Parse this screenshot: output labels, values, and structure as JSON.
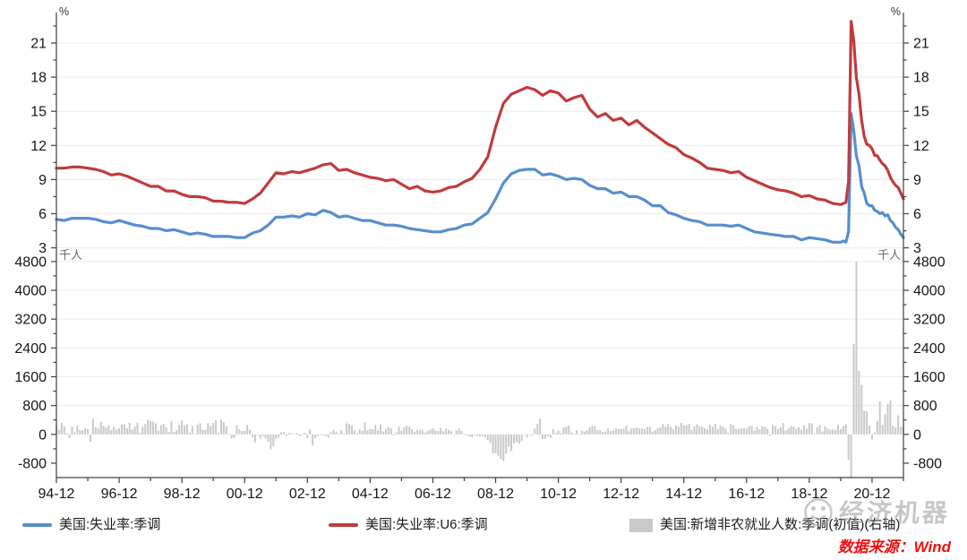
{
  "palette": {
    "axis": "#404040",
    "grid": "#ececec",
    "tick_label": "#161616",
    "unit_label_pct": "#333333",
    "unit_label_kp": "#6e6e6e",
    "watermark_gray": "#9b9b9b",
    "source_red": "#ee1111"
  },
  "chart_data": {
    "type": "mixed",
    "title": "",
    "x": {
      "start": "1994-12",
      "end": "2021-12",
      "months_total": 325,
      "major_tick_step_months": 24,
      "minor_tick_offset_months": 12,
      "major_tick_labels": [
        "94-12",
        "96-12",
        "98-12",
        "00-12",
        "02-12",
        "04-12",
        "06-12",
        "08-12",
        "10-12",
        "12-12",
        "14-12",
        "16-12",
        "18-12",
        "20-12"
      ]
    },
    "top_panel": {
      "unit": "%",
      "ticks": [
        3,
        6,
        9,
        12,
        15,
        18,
        21
      ],
      "minor_ticks": [
        4.5,
        7.5,
        10.5,
        13.5,
        16.5,
        19.5,
        22.5
      ],
      "grid_values": [
        3,
        6,
        9,
        12,
        15,
        18,
        21
      ],
      "range": [
        2.6,
        23.7
      ]
    },
    "bottom_panel": {
      "unit": "千人",
      "ticks": [
        -800,
        0,
        800,
        1600,
        2400,
        3200,
        4000,
        4800
      ],
      "minor_ticks": [
        -400,
        400,
        1200,
        2000,
        2800,
        3600,
        4400
      ],
      "grid_values": [
        800,
        1600,
        2400,
        3200,
        4000,
        4800
      ],
      "range": [
        -1200,
        4950
      ]
    },
    "series": [
      {
        "name": "美国:失业率:季调",
        "type": "line",
        "panel": "top",
        "color": "#568ECF",
        "quarterly_values": [
          5.5,
          5.4,
          5.6,
          5.6,
          5.6,
          5.5,
          5.3,
          5.2,
          5.4,
          5.2,
          5.0,
          4.9,
          4.7,
          4.7,
          4.5,
          4.6,
          4.4,
          4.2,
          4.3,
          4.2,
          4.0,
          4.0,
          4.0,
          3.9,
          3.9,
          4.3,
          4.5,
          5.0,
          5.7,
          5.7,
          5.8,
          5.7,
          6.0,
          5.9,
          6.3,
          6.1,
          5.7,
          5.8,
          5.6,
          5.4,
          5.4,
          5.2,
          5.0,
          5.0,
          4.9,
          4.7,
          4.6,
          4.5,
          4.4,
          4.4,
          4.6,
          4.7,
          5.0,
          5.1,
          5.6,
          6.1,
          7.3,
          8.7,
          9.5,
          9.8,
          9.9,
          9.9,
          9.4,
          9.5,
          9.3,
          9.0,
          9.1,
          9.0,
          8.5,
          8.2,
          8.2,
          7.8,
          7.9,
          7.5,
          7.5,
          7.2,
          6.7,
          6.7,
          6.1,
          5.9,
          5.6,
          5.4,
          5.3,
          5.0,
          5.0,
          5.0,
          4.9,
          5.0,
          4.7,
          4.4,
          4.3,
          4.2,
          4.1,
          4.0,
          4.0,
          3.7,
          3.9,
          3.8,
          3.7,
          3.5,
          3.5
        ],
        "monthly_tail_start_t": 301,
        "monthly_tail_values": [
          3.6,
          3.5,
          4.4,
          14.8,
          13.3,
          11.1,
          10.2,
          8.4,
          7.8,
          6.9,
          6.7,
          6.7,
          6.3,
          6.2,
          6.0,
          6.1,
          5.8,
          5.9,
          5.4,
          5.2,
          4.8,
          4.6,
          4.2,
          3.9
        ]
      },
      {
        "name": "美国:失业率:U6:季调",
        "type": "line",
        "panel": "top",
        "color": "#C13B3C",
        "quarterly_values": [
          10.0,
          10.0,
          10.1,
          10.1,
          10.0,
          9.9,
          9.7,
          9.4,
          9.5,
          9.3,
          9.0,
          8.7,
          8.4,
          8.4,
          8.0,
          8.0,
          7.7,
          7.5,
          7.5,
          7.4,
          7.1,
          7.1,
          7.0,
          7.0,
          6.9,
          7.3,
          7.8,
          8.7,
          9.6,
          9.5,
          9.7,
          9.6,
          9.8,
          10.0,
          10.3,
          10.4,
          9.8,
          9.9,
          9.6,
          9.4,
          9.2,
          9.1,
          8.9,
          9.0,
          8.6,
          8.2,
          8.4,
          8.0,
          7.9,
          8.0,
          8.3,
          8.4,
          8.8,
          9.1,
          9.9,
          11.0,
          13.6,
          15.7,
          16.5,
          16.8,
          17.1,
          16.9,
          16.4,
          16.8,
          16.6,
          15.9,
          16.2,
          16.4,
          15.2,
          14.5,
          14.8,
          14.2,
          14.4,
          13.8,
          14.2,
          13.6,
          13.1,
          12.6,
          12.1,
          11.8,
          11.2,
          10.9,
          10.5,
          10.0,
          9.9,
          9.8,
          9.6,
          9.7,
          9.2,
          8.9,
          8.6,
          8.3,
          8.1,
          8.0,
          7.8,
          7.5,
          7.6,
          7.3,
          7.2,
          6.9,
          6.8
        ],
        "monthly_tail_start_t": 301,
        "monthly_tail_values": [
          6.9,
          7.0,
          8.8,
          22.9,
          21.2,
          18.0,
          16.5,
          14.2,
          12.8,
          12.1,
          12.0,
          11.7,
          11.1,
          11.1,
          10.7,
          10.4,
          10.2,
          9.8,
          9.2,
          8.8,
          8.5,
          8.3,
          7.8,
          7.3
        ]
      },
      {
        "name": "美国:新增非农就业人数:季调(初值)(右轴)",
        "type": "bar",
        "panel": "bottom",
        "color": "#C9C9C9",
        "start": "1994-12",
        "monthly_values": [
          256,
          134,
          318,
          220,
          32,
          -101,
          215,
          55,
          249,
          121,
          116,
          166,
          146,
          -201,
          434,
          196,
          163,
          348,
          239,
          193,
          250,
          118,
          210,
          139,
          167,
          271,
          293,
          175,
          323,
          138,
          217,
          316,
          49,
          215,
          284,
          404,
          370,
          358,
          310,
          103,
          262,
          296,
          196,
          66,
          365,
          69,
          116,
          267,
          378,
          245,
          275,
          46,
          234,
          11,
          268,
          310,
          124,
          124,
          310,
          234,
          315,
          387,
          43,
          416,
          340,
          231,
          11,
          -108,
          -105,
          252,
          137,
          94,
          105,
          268,
          135,
          -86,
          -223,
          -19,
          -114,
          -42,
          -113,
          -199,
          -415,
          -331,
          -124,
          -89,
          66,
          58,
          -43,
          41,
          36,
          6,
          39,
          -43,
          -5,
          41,
          -101,
          143,
          -308,
          -108,
          -48,
          -17,
          -30,
          -44,
          -93,
          57,
          126,
          57,
          1,
          112,
          21,
          308,
          288,
          248,
          112,
          32,
          144,
          96,
          337,
          112,
          157,
          146,
          262,
          110,
          274,
          78,
          146,
          207,
          169,
          -35,
          56,
          215,
          108,
          193,
          243,
          211,
          138,
          75,
          121,
          113,
          128,
          51,
          92,
          132,
          167,
          111,
          97,
          180,
          88,
          157,
          132,
          92,
          -4,
          110,
          166,
          94,
          18,
          -17,
          -63,
          -80,
          -20,
          -49,
          -62,
          -51,
          -84,
          -159,
          -240,
          -533,
          -524,
          -598,
          -681,
          -742,
          -539,
          -345,
          -467,
          -247,
          -216,
          -263,
          -190,
          -11,
          -85,
          -20,
          -36,
          162,
          290,
          431,
          -125,
          -131,
          -54,
          -95,
          151,
          39,
          103,
          36,
          192,
          216,
          244,
          54,
          18,
          117,
          0,
          103,
          80,
          120,
          200,
          243,
          227,
          120,
          115,
          69,
          80,
          163,
          96,
          114,
          171,
          146,
          155,
          157,
          236,
          88,
          165,
          175,
          195,
          162,
          169,
          148,
          204,
          203,
          74,
          113,
          175,
          192,
          288,
          217,
          288,
          209,
          142,
          248,
          214,
          321,
          252,
          257,
          295,
          126,
          223,
          280,
          223,
          215,
          173,
          142,
          271,
          211,
          292,
          151,
          242,
          215,
          160,
          38,
          287,
          255,
          151,
          156,
          161,
          178,
          156,
          227,
          235,
          98,
          211,
          138,
          222,
          209,
          156,
          -33,
          261,
          228,
          148,
          200,
          313,
          103,
          164,
          223,
          213,
          157,
          201,
          134,
          250,
          155,
          312,
          304,
          20,
          196,
          263,
          75,
          224,
          164,
          130,
          136,
          128,
          266,
          145,
          225,
          273,
          -701,
          -20500,
          2509,
          4800,
          1763,
          1371,
          661,
          638,
          245,
          -140,
          49,
          379,
          916,
          266,
          559,
          850,
          943,
          235,
          194,
          531,
          210,
          199
        ]
      }
    ]
  },
  "legend": {
    "items": [
      {
        "label": "美国:失业率:季调"
      },
      {
        "label": "美国:失业率:U6:季调"
      },
      {
        "label": "美国:新增非农就业人数:季调(初值)(右轴)"
      }
    ]
  },
  "watermark": {
    "text": "经济机器"
  },
  "source_note": {
    "text": "数据来源：Wind"
  }
}
